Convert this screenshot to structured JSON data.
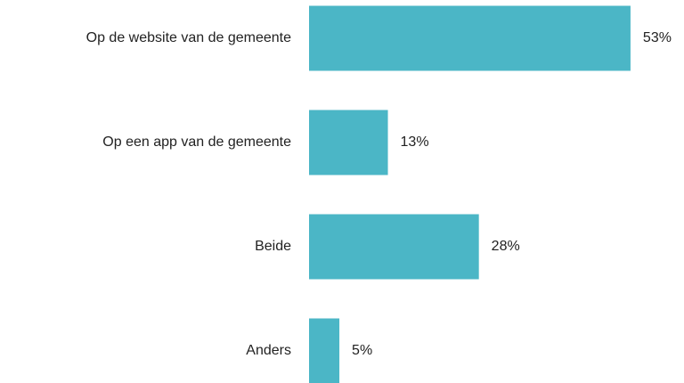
{
  "chart_data": {
    "type": "bar",
    "orientation": "horizontal",
    "categories": [
      "Op de website van de gemeente",
      "Op een app van de gemeente",
      "Beide",
      "Anders"
    ],
    "values": [
      53,
      13,
      28,
      5
    ],
    "value_labels": [
      "53%",
      "13%",
      "28%",
      "5%"
    ],
    "color": "#4bb6c6"
  }
}
